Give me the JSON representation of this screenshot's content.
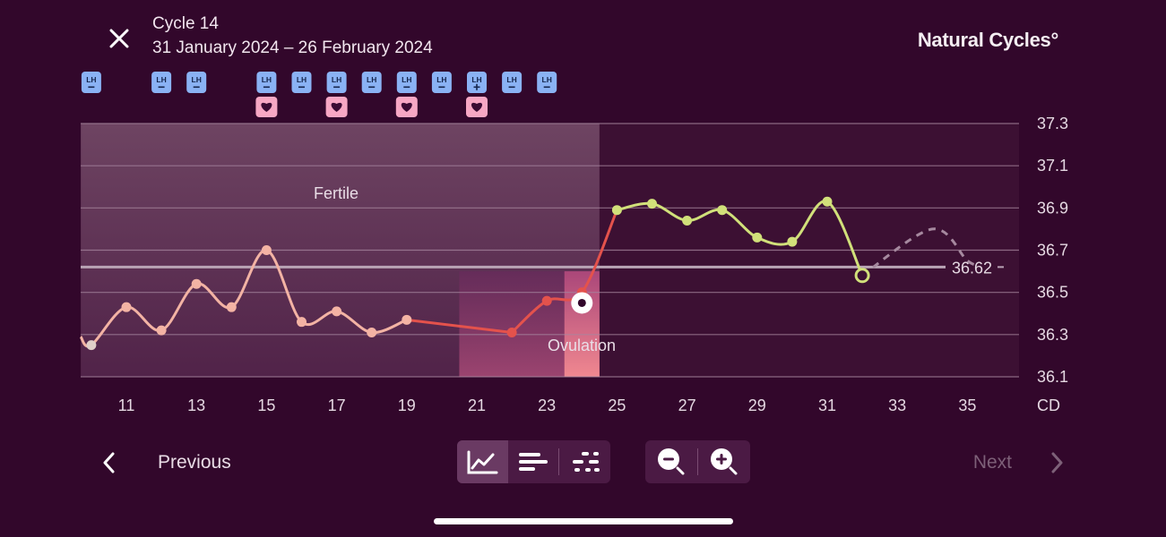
{
  "header": {
    "title": "Cycle 14",
    "dates": "31 January 2024 – 26 February 2024",
    "brand": "Natural Cycles°"
  },
  "nav": {
    "previous": "Previous",
    "next": "Next"
  },
  "view_controls": {
    "views": [
      {
        "name": "graph-view",
        "active": true
      },
      {
        "name": "list-view",
        "active": false
      },
      {
        "name": "scatter-view",
        "active": false
      }
    ],
    "zoom": [
      "zoom-out",
      "zoom-in"
    ]
  },
  "colors": {
    "background": "#32072b",
    "lh_badge": "#8ab2f4",
    "intercourse_badge": "#f7a7c4",
    "pre_ovulation_line": "#f3b3a4",
    "peri_ovulation_line": "#e4524c",
    "post_ovulation_line": "#d1e07a",
    "prediction_line": "#a6899f"
  },
  "chart_data": {
    "type": "line",
    "xlabel": "CD",
    "x_ticks": [
      11,
      13,
      15,
      17,
      19,
      21,
      23,
      25,
      27,
      29,
      31,
      33,
      35
    ],
    "y_ticks": [
      36.1,
      36.3,
      36.5,
      36.7,
      36.9,
      37.1,
      37.3
    ],
    "ylim": [
      36.1,
      37.3
    ],
    "xlim": [
      9.7,
      36.4
    ],
    "grid": true,
    "cover_line": {
      "value": 36.62,
      "label": "36.62"
    },
    "series": [
      {
        "phase": "pre-ovulation",
        "points": [
          [
            10,
            36.25
          ],
          [
            11,
            36.43
          ],
          [
            12,
            36.32
          ],
          [
            13,
            36.54
          ],
          [
            14,
            36.43
          ],
          [
            15,
            36.7
          ],
          [
            16,
            36.36
          ],
          [
            17,
            36.41
          ],
          [
            18,
            36.31
          ],
          [
            19,
            36.37
          ]
        ]
      },
      {
        "phase": "peri-ovulation",
        "points": [
          [
            22,
            36.31
          ],
          [
            23,
            36.46
          ],
          [
            24,
            36.5
          ]
        ]
      },
      {
        "phase": "post-ovulation",
        "points": [
          [
            25,
            36.89
          ],
          [
            26,
            36.92
          ],
          [
            27,
            36.84
          ],
          [
            28,
            36.89
          ],
          [
            29,
            36.76
          ],
          [
            30,
            36.74
          ],
          [
            31,
            36.93
          ]
        ]
      },
      {
        "phase": "today",
        "points": [
          [
            32,
            36.58
          ]
        ]
      },
      {
        "phase": "prediction",
        "points": [
          [
            32,
            36.58
          ],
          [
            34,
            36.8
          ],
          [
            35,
            36.65
          ]
        ]
      }
    ],
    "ovulation_marker": {
      "day": 24,
      "value": 36.45
    },
    "regions": [
      {
        "label": "Fertile",
        "from": 9.7,
        "to": 24.5,
        "top": 37.3
      },
      {
        "label": "",
        "from": 20.5,
        "to": 24.5,
        "top": 36.6
      },
      {
        "label": "Ovulation",
        "from": 23.5,
        "to": 24.5,
        "top": 36.6
      }
    ],
    "lh_tests": [
      {
        "day": 10,
        "result": "negative"
      },
      {
        "day": 12,
        "result": "negative"
      },
      {
        "day": 13,
        "result": "negative"
      },
      {
        "day": 15,
        "result": "negative"
      },
      {
        "day": 16,
        "result": "negative"
      },
      {
        "day": 17,
        "result": "negative"
      },
      {
        "day": 18,
        "result": "negative"
      },
      {
        "day": 19,
        "result": "negative"
      },
      {
        "day": 20,
        "result": "negative"
      },
      {
        "day": 21,
        "result": "positive"
      },
      {
        "day": 22,
        "result": "negative"
      },
      {
        "day": 23,
        "result": "negative"
      }
    ],
    "intercourse_days": [
      15,
      17,
      19,
      21
    ]
  }
}
